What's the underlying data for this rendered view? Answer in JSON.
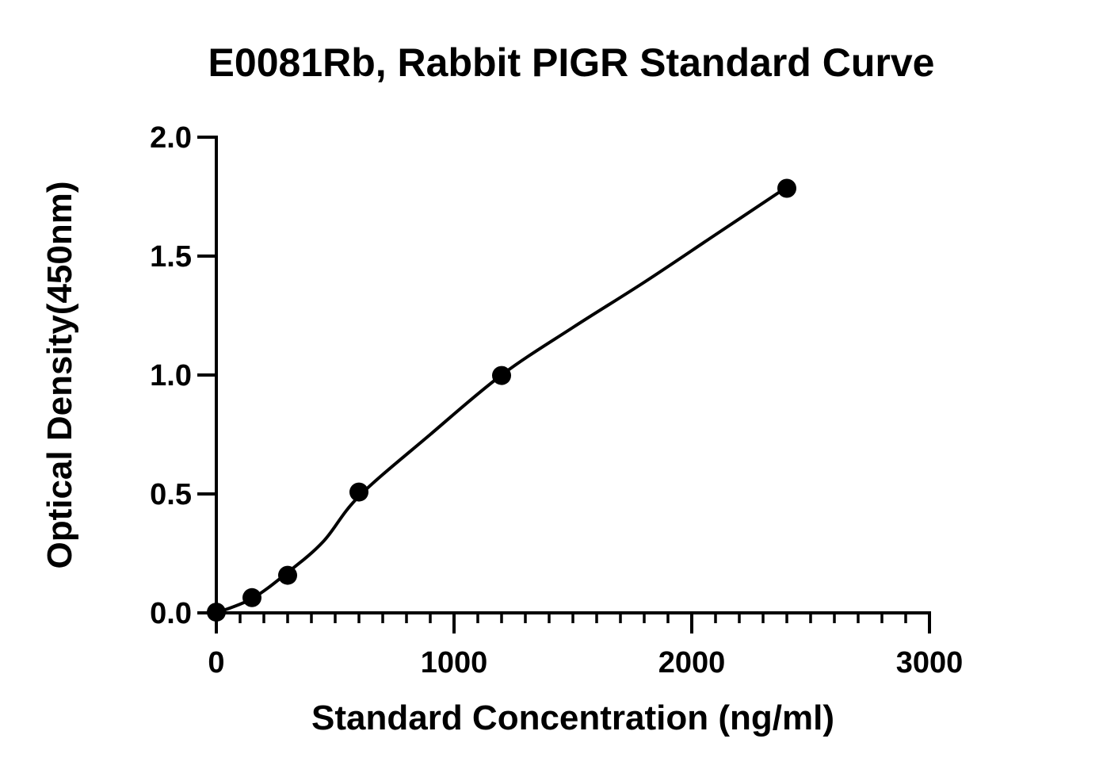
{
  "chart_data": {
    "type": "scatter",
    "title": "E0081Rb, Rabbit PIGR Standard Curve",
    "xlabel": "Standard Concentration (ng/ml)",
    "ylabel": "Optical Density(450nm)",
    "xlim": [
      0,
      3000
    ],
    "ylim": [
      0,
      2.0
    ],
    "x_ticks": [
      0,
      1000,
      2000,
      3000
    ],
    "x_tick_labels": [
      "0",
      "1000",
      "2000",
      "3000"
    ],
    "x_minor_step": 100,
    "y_ticks": [
      0,
      0.5,
      1.0,
      1.5,
      2.0
    ],
    "y_tick_labels": [
      "0.0",
      "0.5",
      "1.0",
      "1.5",
      "2.0"
    ],
    "grid": false,
    "legend": "none",
    "series": [
      {
        "points": [
          {
            "x": 0,
            "y": 0.003
          },
          {
            "x": 150,
            "y": 0.064
          },
          {
            "x": 300,
            "y": 0.158
          },
          {
            "x": 600,
            "y": 0.508
          },
          {
            "x": 1200,
            "y": 0.998
          },
          {
            "x": 2400,
            "y": 1.785
          }
        ],
        "fit_curve": [
          {
            "x": 0,
            "y": 0.0
          },
          {
            "x": 150,
            "y": 0.06
          },
          {
            "x": 300,
            "y": 0.17
          },
          {
            "x": 450,
            "y": 0.3
          },
          {
            "x": 600,
            "y": 0.49
          },
          {
            "x": 900,
            "y": 0.75
          },
          {
            "x": 1200,
            "y": 1.0
          },
          {
            "x": 1500,
            "y": 1.2
          },
          {
            "x": 1800,
            "y": 1.39
          },
          {
            "x": 2100,
            "y": 1.59
          },
          {
            "x": 2400,
            "y": 1.79
          }
        ]
      }
    ],
    "colors": {
      "line": "#000000",
      "marker": "#000000"
    }
  }
}
